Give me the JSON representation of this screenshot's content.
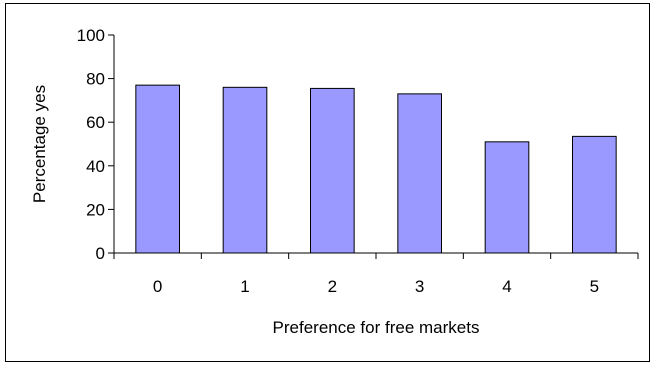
{
  "chart_data": {
    "type": "bar",
    "title": "",
    "xlabel": "Preference for free markets",
    "ylabel": "Percentage yes",
    "categories": [
      "0",
      "1",
      "2",
      "3",
      "4",
      "5"
    ],
    "values": [
      77,
      76,
      75.5,
      73,
      51,
      53.5
    ],
    "ylim": [
      0,
      100
    ],
    "yticks": [
      0,
      20,
      40,
      60,
      80,
      100
    ],
    "ytick_labels": [
      "0",
      "20",
      "40",
      "60",
      "80",
      "100"
    ],
    "grid": false,
    "legend": "none",
    "colors": {
      "bar_fill": "#9999ff",
      "bar_stroke": "#000000",
      "axis": "#000000"
    }
  }
}
